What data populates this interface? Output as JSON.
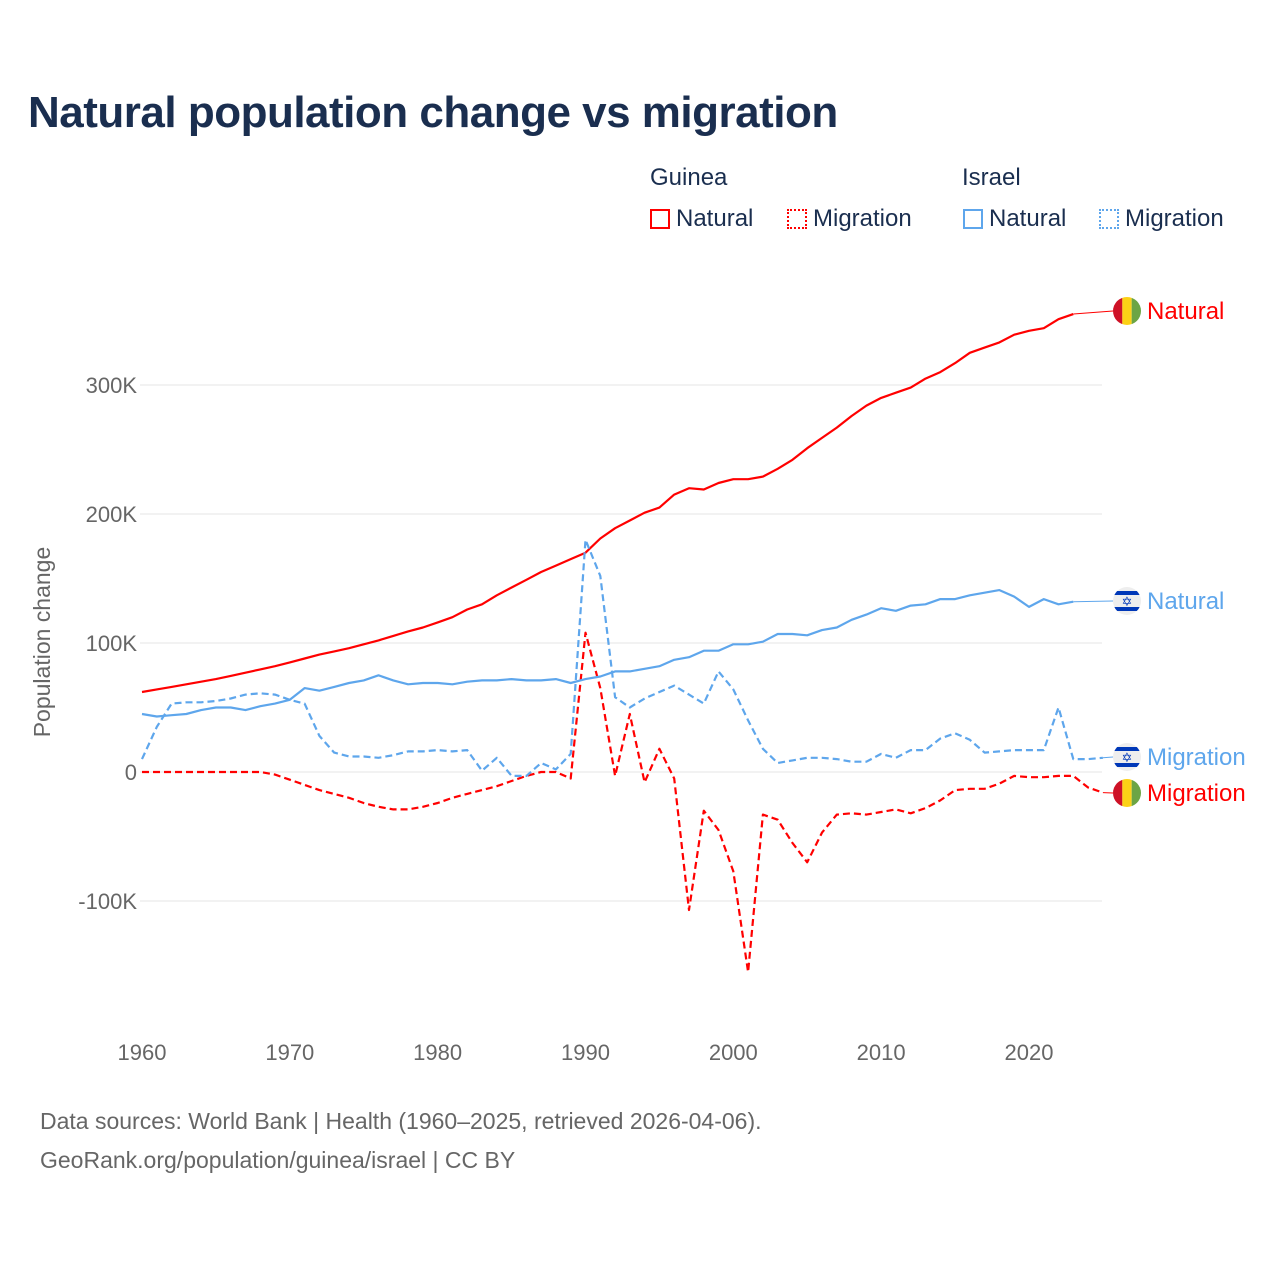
{
  "chart_data": {
    "type": "line",
    "title": "Natural population change vs migration",
    "xlabel": "",
    "ylabel": "Population change",
    "xlim": [
      1960,
      2025
    ],
    "ylim": [
      -170000,
      370000
    ],
    "grid": true,
    "x_ticks": [
      "1960",
      "1970",
      "1980",
      "1990",
      "2000",
      "2010",
      "2020"
    ],
    "y_ticks": [
      {
        "v": 300000,
        "label": "300K"
      },
      {
        "v": 200000,
        "label": "200K"
      },
      {
        "v": 100000,
        "label": "100K"
      },
      {
        "v": 0,
        "label": "0"
      },
      {
        "v": -100000,
        "label": "-100K"
      }
    ],
    "legend": {
      "placement": "top-right",
      "groups": [
        {
          "name": "Guinea",
          "items": [
            "Natural",
            "Migration"
          ]
        },
        {
          "name": "Israel",
          "items": [
            "Natural",
            "Migration"
          ]
        }
      ]
    },
    "series": [
      {
        "name": "Guinea Natural",
        "country": "Guinea",
        "label": "Natural",
        "color": "#ff0000",
        "dash": false,
        "start": 1960,
        "values": [
          62,
          64,
          66,
          68,
          70,
          72,
          74.5,
          77,
          79.5,
          82,
          85,
          88,
          91,
          93.5,
          96,
          99,
          102,
          105.5,
          109,
          112,
          116,
          120,
          126,
          130,
          137,
          143,
          149,
          155,
          160,
          165,
          170,
          181,
          189,
          195,
          201,
          205,
          215,
          220,
          219,
          224,
          227,
          227,
          229,
          235,
          242,
          251,
          259,
          267,
          276,
          284,
          290,
          294,
          298,
          305,
          310,
          317,
          325,
          329,
          333,
          339,
          342,
          344,
          351,
          355
        ]
      },
      {
        "name": "Guinea Migration",
        "country": "Guinea",
        "label": "Migration",
        "color": "#ff0000",
        "dash": true,
        "start": 1960,
        "values": [
          0,
          0,
          0,
          0,
          0,
          0,
          0,
          0,
          0,
          -2,
          -6,
          -10,
          -14,
          -17,
          -20,
          -24,
          -27,
          -29,
          -29,
          -27,
          -24,
          -20,
          -17,
          -14,
          -11,
          -7,
          -3,
          0,
          0,
          -5,
          108,
          65,
          -3,
          45,
          -8,
          18,
          -5,
          -107,
          -30,
          -45,
          -77,
          -155,
          -33,
          -37,
          -55,
          -70,
          -47,
          -33,
          -32,
          -33,
          -31,
          -29,
          -32,
          -28,
          -22,
          -14,
          -13,
          -13,
          -9,
          -3,
          -4,
          -4,
          -3,
          -3,
          -12,
          -16
        ]
      },
      {
        "name": "Israel Natural",
        "country": "Israel",
        "label": "Natural",
        "color": "#5ea6ec",
        "dash": false,
        "start": 1960,
        "values": [
          45,
          43,
          44,
          45,
          48,
          50,
          50,
          48,
          51,
          53,
          56,
          65,
          63,
          66,
          69,
          71,
          75,
          71,
          68,
          69,
          69,
          68,
          70,
          71,
          71,
          72,
          71,
          71,
          72,
          69,
          72,
          74,
          78,
          78,
          80,
          82,
          87,
          89,
          94,
          94,
          99,
          99,
          101,
          107,
          107,
          106,
          110,
          112,
          118,
          122,
          127,
          125,
          129,
          130,
          134,
          134,
          137,
          139,
          141,
          136,
          128,
          134,
          130,
          132
        ]
      },
      {
        "name": "Israel Migration",
        "country": "Israel",
        "label": "Migration",
        "color": "#5ea6ec",
        "dash": true,
        "start": 1960,
        "values": [
          10,
          35,
          53,
          54,
          54,
          55,
          57,
          60,
          61,
          60,
          56,
          53,
          28,
          15,
          12,
          12,
          11,
          13,
          16,
          16,
          17,
          16,
          17,
          1,
          11,
          -3,
          -3,
          7,
          2,
          14,
          180,
          152,
          58,
          50,
          57,
          62,
          67,
          60,
          53,
          78,
          64,
          40,
          18,
          7,
          9,
          11,
          11,
          10,
          8,
          8,
          14,
          11,
          17,
          17,
          26,
          30,
          25,
          15,
          16,
          17,
          17,
          17,
          50,
          10,
          10,
          11
        ]
      }
    ],
    "value_unit": "thousands"
  },
  "footer": {
    "line1": "Data sources: World Bank | Health (1960–2025, retrieved 2026-04-06).",
    "line2": "GeoRank.org/population/guinea/israel | CC BY"
  }
}
